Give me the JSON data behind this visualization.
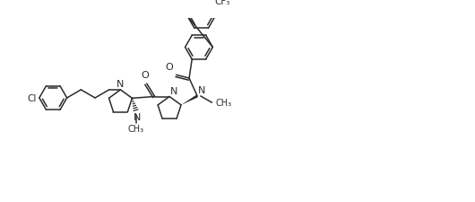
{
  "bg": "#ffffff",
  "lc": "#2b2b2b",
  "lw": 1.1,
  "fs": 7.0,
  "xlim": [
    0,
    530
  ],
  "ylim": [
    0,
    226
  ],
  "r_benz": 17,
  "r_pyr": 15
}
